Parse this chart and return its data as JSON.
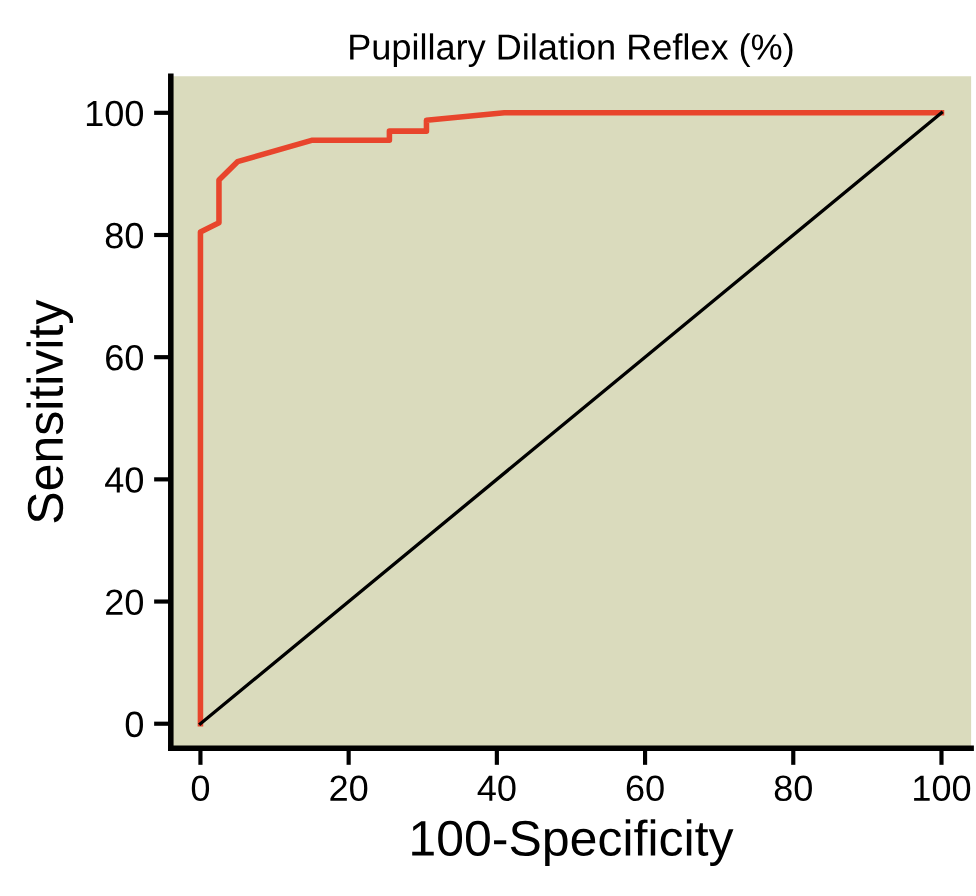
{
  "chart_data": {
    "type": "line",
    "title": "Pupillary Dilation Reflex (%)",
    "xlabel": "100-Specificity",
    "ylabel": "Sensitivity",
    "series": [
      {
        "color": "#e8452c",
        "x": [
          0,
          0,
          2.5,
          2.5,
          5,
          15,
          25.5,
          25.5,
          30.5,
          30.5,
          41,
          100
        ],
        "values": [
          0,
          80.5,
          82,
          89,
          92,
          95.5,
          95.5,
          97,
          97,
          98.8,
          100,
          100
        ]
      },
      {
        "color": "#000000",
        "x": [
          0,
          100
        ],
        "values": [
          0,
          100
        ]
      }
    ],
    "xlim": [
      -4,
      104
    ],
    "ylim": [
      -4,
      106
    ],
    "xticks": [
      0,
      20,
      40,
      60,
      80,
      100
    ],
    "yticks": [
      0,
      20,
      40,
      60,
      80,
      100
    ],
    "grid": false,
    "marker": "none",
    "line_style": "solid"
  }
}
